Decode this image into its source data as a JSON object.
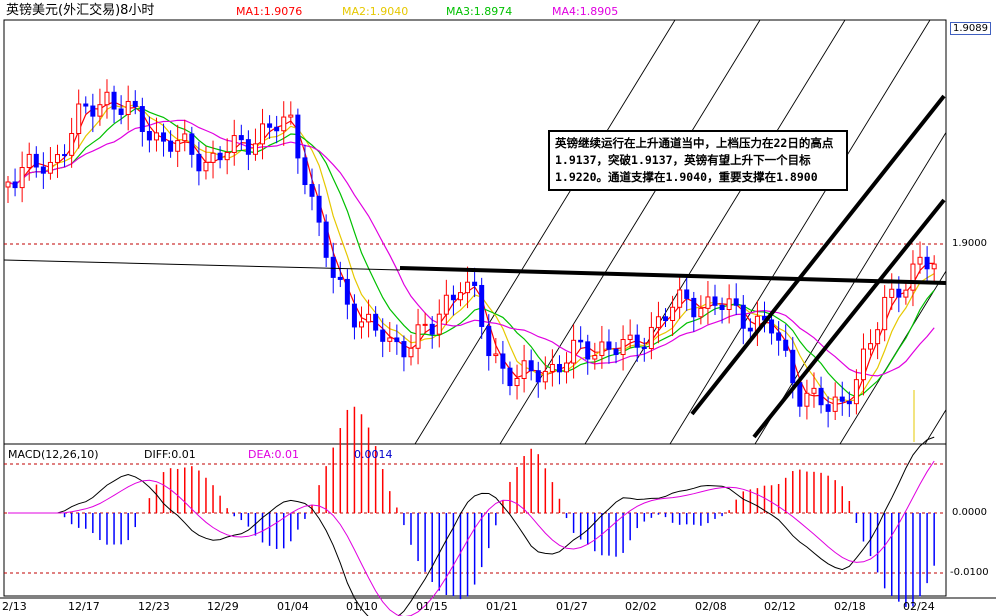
{
  "header": {
    "title": "英镑美元(外汇交易)8小时",
    "ma1": "MA1:1.9076",
    "ma2": "MA2:1.9040",
    "ma3": "MA3:1.8974",
    "ma4": "MA4:1.8905"
  },
  "macd_header": {
    "name": "MACD(12,26,10)",
    "diff": "DIFF:0.01",
    "dea": "DEA:0.01",
    "value": "0.0014"
  },
  "price_axis": {
    "top_label": "1.9089",
    "mid_label": "1.9000"
  },
  "macd_axis": {
    "zero_label": "0.0000",
    "neg_label": "-0.0100"
  },
  "callout": {
    "text": "英镑继续运行在上升通道当中，上档压力在22日的高点1.9137，突破1.9137，英镑有望上升下一个目标1.9220。通道支撑在1.9040，重要支撑在1.8900"
  },
  "colors": {
    "ma1": "#ff0000",
    "ma2": "#e6c800",
    "ma3": "#00c000",
    "ma4": "#e000e0",
    "up": "#ff0000",
    "down": "#0000ff",
    "diff": "#000000",
    "dea": "#e000e0"
  },
  "chart_data": {
    "type": "candlestick",
    "x_tick_labels": [
      "2/13",
      "12/17",
      "12/23",
      "12/29",
      "01/04",
      "01/10",
      "01/15",
      "01/21",
      "01/27",
      "02/02",
      "02/08",
      "02/12",
      "02/18",
      "02/24"
    ],
    "price_levels": {
      "top": 1.9089,
      "mid": 1.9
    },
    "macd_levels": {
      "zero": 0.0,
      "neg": -0.01
    },
    "series": [
      {
        "name": "MA1",
        "value": 1.9076
      },
      {
        "name": "MA2",
        "value": 1.904
      },
      {
        "name": "MA3",
        "value": 1.8974
      },
      {
        "name": "MA4",
        "value": 1.8905
      },
      {
        "name": "DIFF",
        "value": 0.01
      },
      {
        "name": "DEA",
        "value": 0.01
      }
    ],
    "annotations": [
      "ascending channel",
      "horizontal resistance line",
      "parallel grid lines"
    ]
  }
}
